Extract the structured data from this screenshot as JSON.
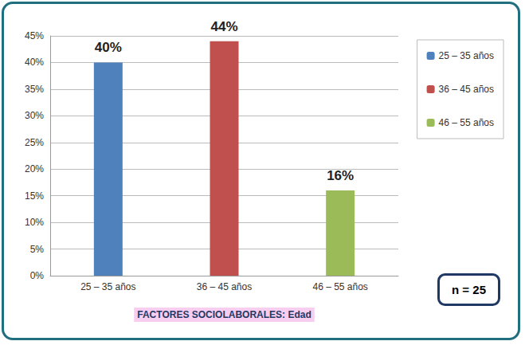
{
  "chart_data": {
    "type": "bar",
    "x_label": "FACTORES SOCIOLABORALES: Edad",
    "annotation": "n = 25",
    "categories": [
      "25 – 35 años",
      "36 – 45 años",
      "46 – 55 años"
    ],
    "values": [
      40,
      44,
      16
    ],
    "value_labels": [
      "40%",
      "44%",
      "16%"
    ],
    "colors": [
      "#4f81bd",
      "#c0504d",
      "#9bbb59"
    ],
    "ylim": [
      0,
      45
    ],
    "yticks": [
      {
        "value": 0,
        "label": "0%"
      },
      {
        "value": 5,
        "label": "5%"
      },
      {
        "value": 10,
        "label": "10%"
      },
      {
        "value": 15,
        "label": "15%"
      },
      {
        "value": 20,
        "label": "20%"
      },
      {
        "value": 25,
        "label": "25%"
      },
      {
        "value": 30,
        "label": "30%"
      },
      {
        "value": 35,
        "label": "35%"
      },
      {
        "value": 40,
        "label": "40%"
      },
      {
        "value": 45,
        "label": "45%"
      }
    ],
    "grid": true,
    "legend": "right",
    "data_labels": true
  }
}
